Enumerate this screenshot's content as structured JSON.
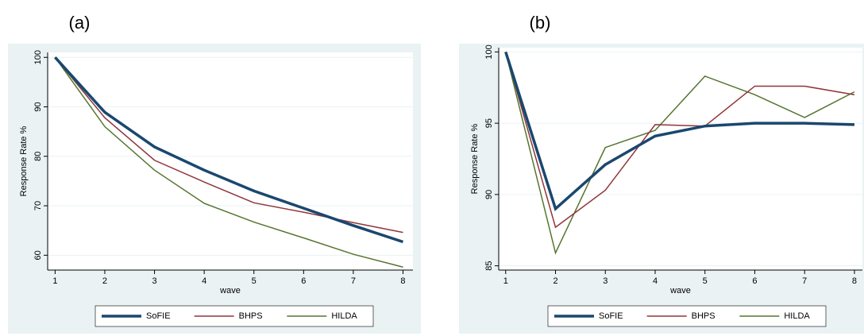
{
  "chart_data": [
    {
      "type": "line",
      "label": "(a)",
      "xlabel": "wave",
      "ylabel": "Response Rate %",
      "x": [
        1,
        2,
        3,
        4,
        5,
        6,
        7,
        8
      ],
      "series": [
        {
          "name": "SoFIE",
          "color": "#1a476f",
          "values": [
            100,
            88.9,
            81.9,
            77.2,
            73.0,
            69.5,
            66.0,
            62.7
          ]
        },
        {
          "name": "BHPS",
          "color": "#90353b",
          "values": [
            100,
            87.8,
            79.2,
            74.8,
            70.6,
            68.7,
            66.6,
            64.6
          ]
        },
        {
          "name": "HILDA",
          "color": "#55752f",
          "values": [
            100,
            86.0,
            77.2,
            70.5,
            66.7,
            63.5,
            60.2,
            57.6
          ]
        }
      ],
      "xlim": [
        0.85,
        8.2
      ],
      "xticks": [
        1,
        2,
        3,
        4,
        5,
        6,
        7,
        8
      ],
      "ylim": [
        57,
        101
      ],
      "yticks": [
        60,
        70,
        80,
        90,
        100
      ],
      "grid": true
    },
    {
      "type": "line",
      "label": "(b)",
      "xlabel": "wave",
      "ylabel": "Response Rate %",
      "x": [
        1,
        2,
        3,
        4,
        5,
        6,
        7,
        8
      ],
      "series": [
        {
          "name": "SoFIE",
          "color": "#1a476f",
          "values": [
            100,
            89.0,
            92.1,
            94.1,
            94.8,
            95.0,
            95.0,
            94.9
          ]
        },
        {
          "name": "BHPS",
          "color": "#90353b",
          "values": [
            100,
            87.7,
            90.3,
            94.9,
            94.8,
            97.6,
            97.6,
            97.0
          ]
        },
        {
          "name": "HILDA",
          "color": "#55752f",
          "values": [
            100,
            85.9,
            93.3,
            94.5,
            98.3,
            97.0,
            95.4,
            97.2
          ]
        }
      ],
      "xlim": [
        0.86,
        8.16
      ],
      "xticks": [
        1,
        2,
        3,
        4,
        5,
        6,
        7,
        8
      ],
      "ylim": [
        84.7,
        100.3
      ],
      "yticks": [
        85,
        90,
        95,
        100
      ],
      "grid": true
    }
  ]
}
